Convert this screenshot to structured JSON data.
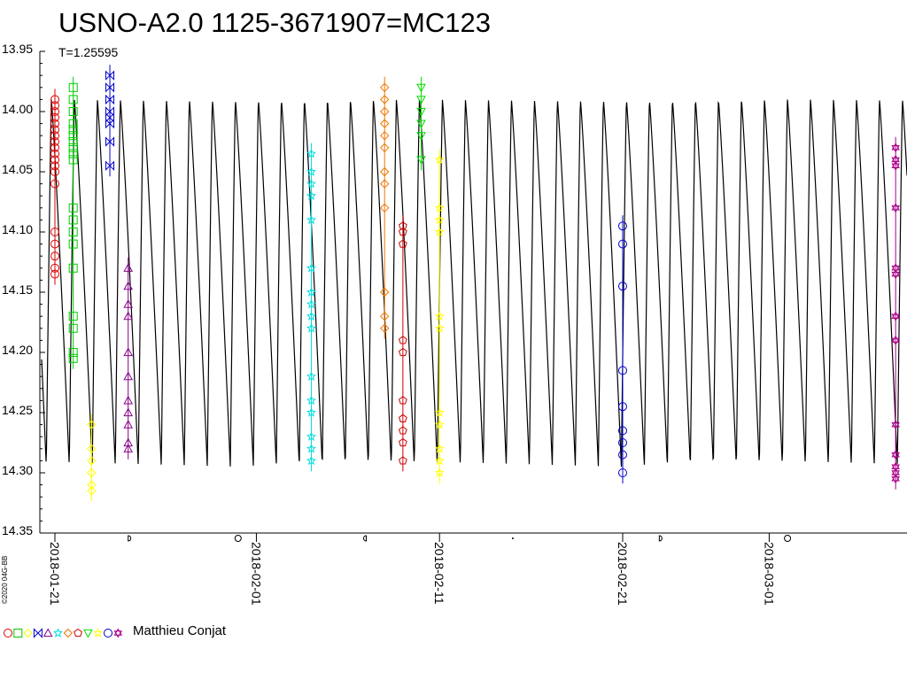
{
  "title": "USNO-A2.0 1125-3671907=MC123",
  "subtitle": "T=1.25595",
  "copyright": "©2020 04G-BB",
  "observer": "Matthieu Conjat",
  "chart_data": {
    "type": "scatter",
    "title": "USNO-A2.0 1125-3671907=MC123",
    "subtitle": "T=1.25595",
    "ylabel": "",
    "xlabel": "",
    "y_inverted": true,
    "ylim": [
      13.95,
      14.35
    ],
    "y_ticks": [
      13.95,
      14.0,
      14.05,
      14.1,
      14.15,
      14.2,
      14.25,
      14.3,
      14.35
    ],
    "y_tick_labels": [
      "13.95",
      "14.00",
      "14.05",
      "14.10",
      "14.15",
      "14.20",
      "14.25",
      "14.30",
      "14.35"
    ],
    "xlim": [
      "2018-01-21",
      "2018-03-08"
    ],
    "x_ticks": [
      "2018-01-21",
      "2018-02-01",
      "2018-02-11",
      "2018-02-21",
      "2018-03-01"
    ],
    "grid": false,
    "model_curve": {
      "period_days": 1.25595,
      "min_mag": 13.99,
      "max_mag": 14.295,
      "color": "#000000"
    },
    "series": [
      {
        "marker": "circle",
        "color": "#dd0000",
        "x": "2018-01-21",
        "values": [
          13.99,
          13.995,
          14.0,
          14.005,
          14.01,
          14.015,
          14.02,
          14.025,
          14.03,
          14.035,
          14.04,
          14.045,
          14.05,
          14.06,
          14.1,
          14.11,
          14.12,
          14.13,
          14.135
        ]
      },
      {
        "marker": "square",
        "color": "#00cc00",
        "x": "2018-01-22",
        "values": [
          13.98,
          13.99,
          14.0,
          14.01,
          14.015,
          14.02,
          14.025,
          14.03,
          14.035,
          14.04,
          14.08,
          14.09,
          14.1,
          14.11,
          14.13,
          14.17,
          14.18,
          14.2,
          14.205
        ]
      },
      {
        "marker": "diamond",
        "color": "#ffff00",
        "x": "2018-01-23",
        "values": [
          14.26,
          14.28,
          14.29,
          14.3,
          14.31,
          14.315
        ]
      },
      {
        "marker": "bowtie",
        "color": "#0000cc",
        "x": "2018-01-24",
        "values": [
          13.97,
          13.98,
          13.99,
          14.0,
          14.005,
          14.01,
          14.025,
          14.045
        ]
      },
      {
        "marker": "triangle",
        "color": "#880088",
        "x": "2018-01-25",
        "values": [
          14.13,
          14.145,
          14.16,
          14.17,
          14.2,
          14.22,
          14.24,
          14.25,
          14.26,
          14.275,
          14.28
        ]
      },
      {
        "marker": "star",
        "color": "#00dddd",
        "x": "2018-02-04",
        "values": [
          14.035,
          14.05,
          14.06,
          14.07,
          14.09,
          14.13,
          14.15,
          14.16,
          14.17,
          14.18,
          14.22,
          14.24,
          14.25,
          14.27,
          14.28,
          14.29
        ]
      },
      {
        "marker": "diamond",
        "color": "#ee7700",
        "x": "2018-02-08",
        "values": [
          13.98,
          13.99,
          14.0,
          14.01,
          14.02,
          14.03,
          14.05,
          14.06,
          14.08,
          14.15,
          14.17,
          14.18
        ]
      },
      {
        "marker": "pentagon",
        "color": "#cc0000",
        "x": "2018-02-09",
        "values": [
          14.095,
          14.1,
          14.11,
          14.19,
          14.2,
          14.24,
          14.255,
          14.265,
          14.275,
          14.29
        ]
      },
      {
        "marker": "triangle-down",
        "color": "#00dd00",
        "x": "2018-02-10",
        "values": [
          13.98,
          13.99,
          14.0,
          14.01,
          14.02,
          14.04
        ]
      },
      {
        "marker": "star",
        "color": "#ffff00",
        "x": "2018-02-11",
        "values": [
          14.04,
          14.08,
          14.09,
          14.1,
          14.17,
          14.18,
          14.25,
          14.26,
          14.28,
          14.29,
          14.3
        ]
      },
      {
        "marker": "circle",
        "color": "#0000cc",
        "x": "2018-02-21",
        "values": [
          14.095,
          14.11,
          14.145,
          14.215,
          14.245,
          14.265,
          14.275,
          14.285,
          14.3
        ]
      },
      {
        "marker": "hexagram",
        "color": "#aa0088",
        "x": "2018-03-08",
        "values": [
          14.03,
          14.04,
          14.045,
          14.08,
          14.13,
          14.135,
          14.17,
          14.19,
          14.26,
          14.285,
          14.295,
          14.3,
          14.305
        ]
      }
    ],
    "legend": {
      "position": "bottom-left",
      "markers": [
        "circle",
        "square",
        "diamond",
        "bowtie",
        "triangle",
        "star",
        "diamond",
        "pentagon",
        "triangle-down",
        "star",
        "circle",
        "hexagram"
      ],
      "colors": [
        "#dd0000",
        "#00cc00",
        "#ffff00",
        "#0000cc",
        "#880088",
        "#00dddd",
        "#ee7700",
        "#cc0000",
        "#00dd00",
        "#ffff00",
        "#0000cc",
        "#aa0088"
      ],
      "label": "Matthieu Conjat"
    },
    "moon_phases": [
      {
        "x": "2018-01-25",
        "symbol": "first-quarter"
      },
      {
        "x": "2018-01-31",
        "symbol": "full"
      },
      {
        "x": "2018-02-07",
        "symbol": "last-quarter"
      },
      {
        "x": "2018-02-15",
        "symbol": "new"
      },
      {
        "x": "2018-02-23",
        "symbol": "first-quarter"
      },
      {
        "x": "2018-03-02",
        "symbol": "full"
      }
    ]
  }
}
